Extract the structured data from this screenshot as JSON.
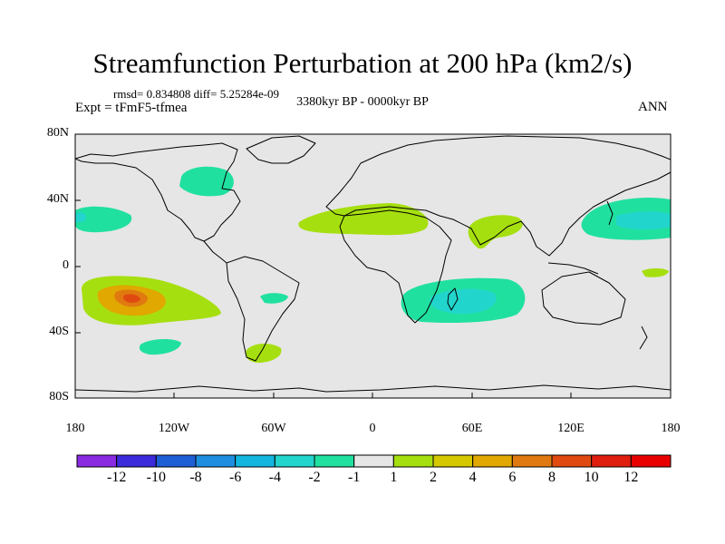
{
  "title": "Streamfunction Perturbation at 200 hPa (km2/s)",
  "stats": "rmsd= 0.834808 diff= 5.25284e-09",
  "experiment": "Expt = tFmF5-tfmea",
  "period": "3380kyr BP - 0000kyr BP",
  "season": "ANN",
  "lat_labels": [
    "80N",
    "40N",
    "0",
    "40S",
    "80S"
  ],
  "lon_labels": [
    "180",
    "120W",
    "60W",
    "0",
    "60E",
    "120E",
    "180"
  ],
  "colorbar": {
    "labels": [
      "-12",
      "-10",
      "-8",
      "-6",
      "-4",
      "-2",
      "-1",
      "1",
      "2",
      "4",
      "6",
      "8",
      "10",
      "12"
    ],
    "colors": [
      "#8a2be2",
      "#3b2bdb",
      "#1f5fd6",
      "#1e8fe0",
      "#12b6df",
      "#22d5cc",
      "#20e0a0",
      "#e6e6e6",
      "#a6df10",
      "#d6c800",
      "#e0a800",
      "#e07a10",
      "#e04a10",
      "#e01e10",
      "#e80000"
    ]
  },
  "colors": {
    "background": "#e6e6e6",
    "coast": "#000000"
  }
}
